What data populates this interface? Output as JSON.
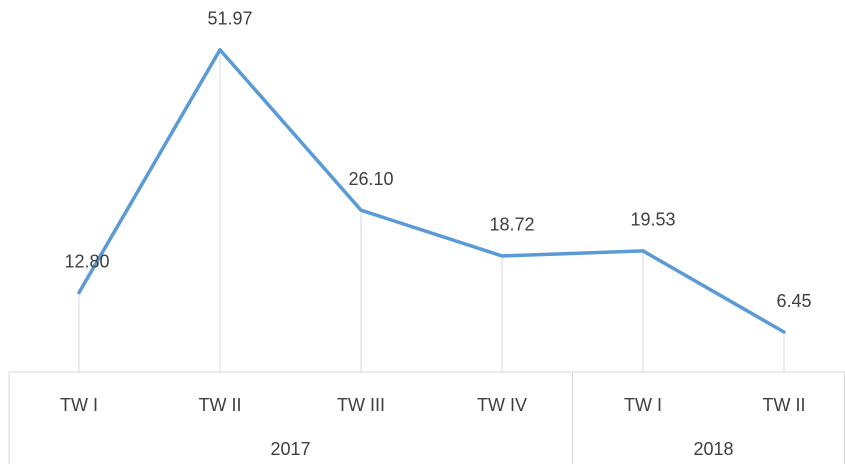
{
  "chart_data": {
    "type": "line",
    "groups": [
      {
        "name": "2017",
        "categories": [
          "TW I",
          "TW II",
          "TW III",
          "TW IV"
        ]
      },
      {
        "name": "2018",
        "categories": [
          "TW I",
          "TW II"
        ]
      }
    ],
    "series": [
      {
        "color": "#5b9bd5",
        "values": [
          12.8,
          51.97,
          26.1,
          18.72,
          19.53,
          6.45
        ],
        "value_labels": [
          "12.80",
          "51.97",
          "26.10",
          "18.72",
          "19.53",
          "6.45"
        ]
      }
    ],
    "ylim": [
      0,
      60
    ],
    "drop_lines": true
  }
}
